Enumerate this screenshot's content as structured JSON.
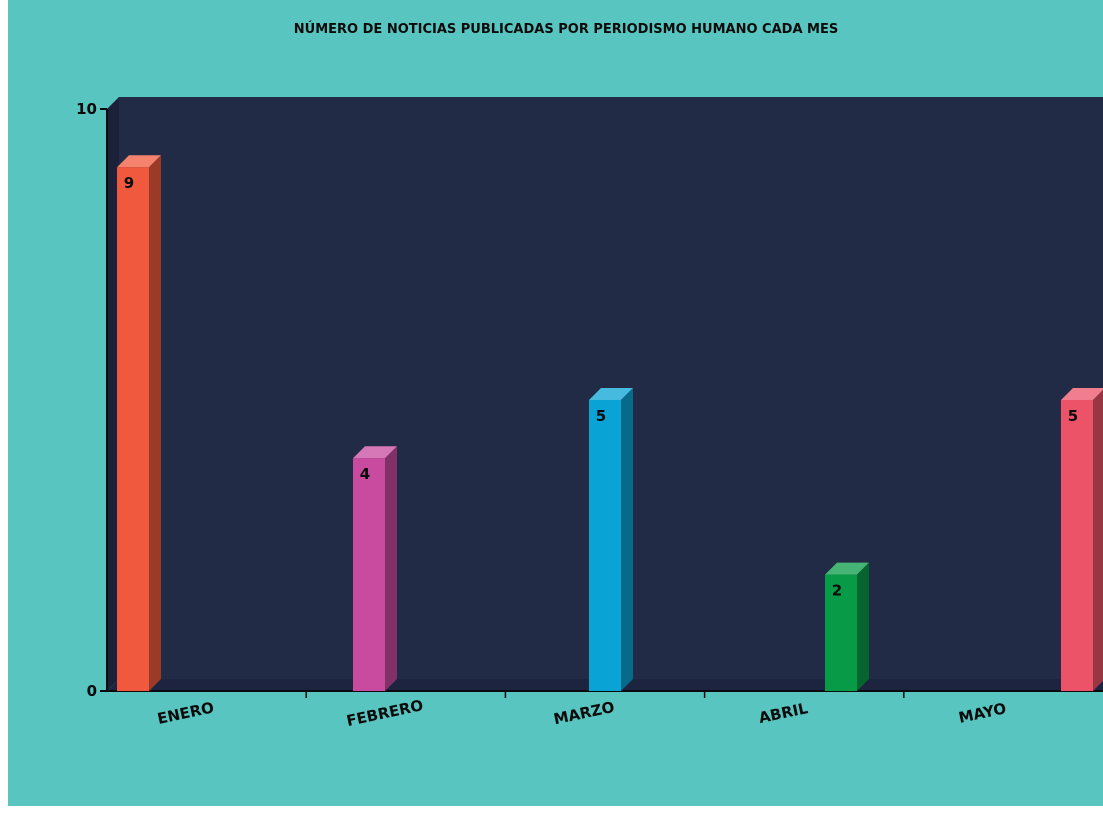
{
  "chart_data": {
    "type": "bar",
    "title": "NÚMERO DE NOTICIAS PUBLICADAS POR PERIODISMO HUMANO CADA MES",
    "categories": [
      "ENERO",
      "FEBRERO",
      "MARZO",
      "ABRIL",
      "MAYO"
    ],
    "values": [
      9,
      4,
      5,
      2,
      5
    ],
    "bar_colors": [
      "#f0593e",
      "#c84ba0",
      "#0aa3d6",
      "#079b47",
      "#ec5368"
    ],
    "ylim": [
      0,
      10
    ],
    "yticks": [
      "0",
      "10"
    ],
    "xlabel": "",
    "ylabel": "",
    "grid": false,
    "legend": "none",
    "plot_background": "#222b45",
    "page_background": "#58c5c0"
  }
}
